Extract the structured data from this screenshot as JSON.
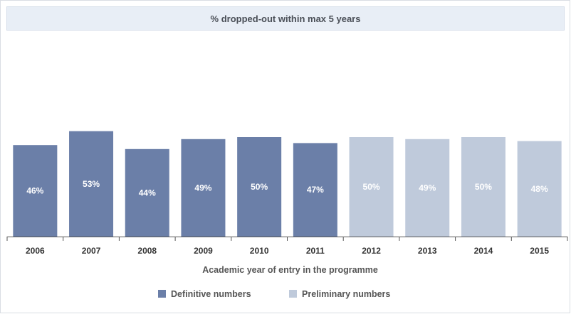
{
  "chart_data": {
    "type": "bar",
    "title": "% dropped-out within max 5 years",
    "xlabel": "Academic year of entry in the programme",
    "ylabel": "",
    "categories": [
      "2006",
      "2007",
      "2008",
      "2009",
      "2010",
      "2011",
      "2012",
      "2013",
      "2014",
      "2015"
    ],
    "values": [
      46,
      53,
      44,
      49,
      50,
      47,
      50,
      49,
      50,
      48
    ],
    "value_labels": [
      "46%",
      "53%",
      "44%",
      "49%",
      "50%",
      "47%",
      "50%",
      "49%",
      "50%",
      "48%"
    ],
    "series_type": [
      "Definitive numbers",
      "Definitive numbers",
      "Definitive numbers",
      "Definitive numbers",
      "Definitive numbers",
      "Definitive numbers",
      "Preliminary numbers",
      "Preliminary numbers",
      "Preliminary numbers",
      "Preliminary numbers"
    ],
    "legend": [
      {
        "name": "Definitive numbers",
        "color": "#6b7fa8"
      },
      {
        "name": "Preliminary numbers",
        "color": "#bfcadb"
      }
    ],
    "legend_position": "bottom",
    "grid": false,
    "ylim": [
      0,
      120
    ]
  }
}
